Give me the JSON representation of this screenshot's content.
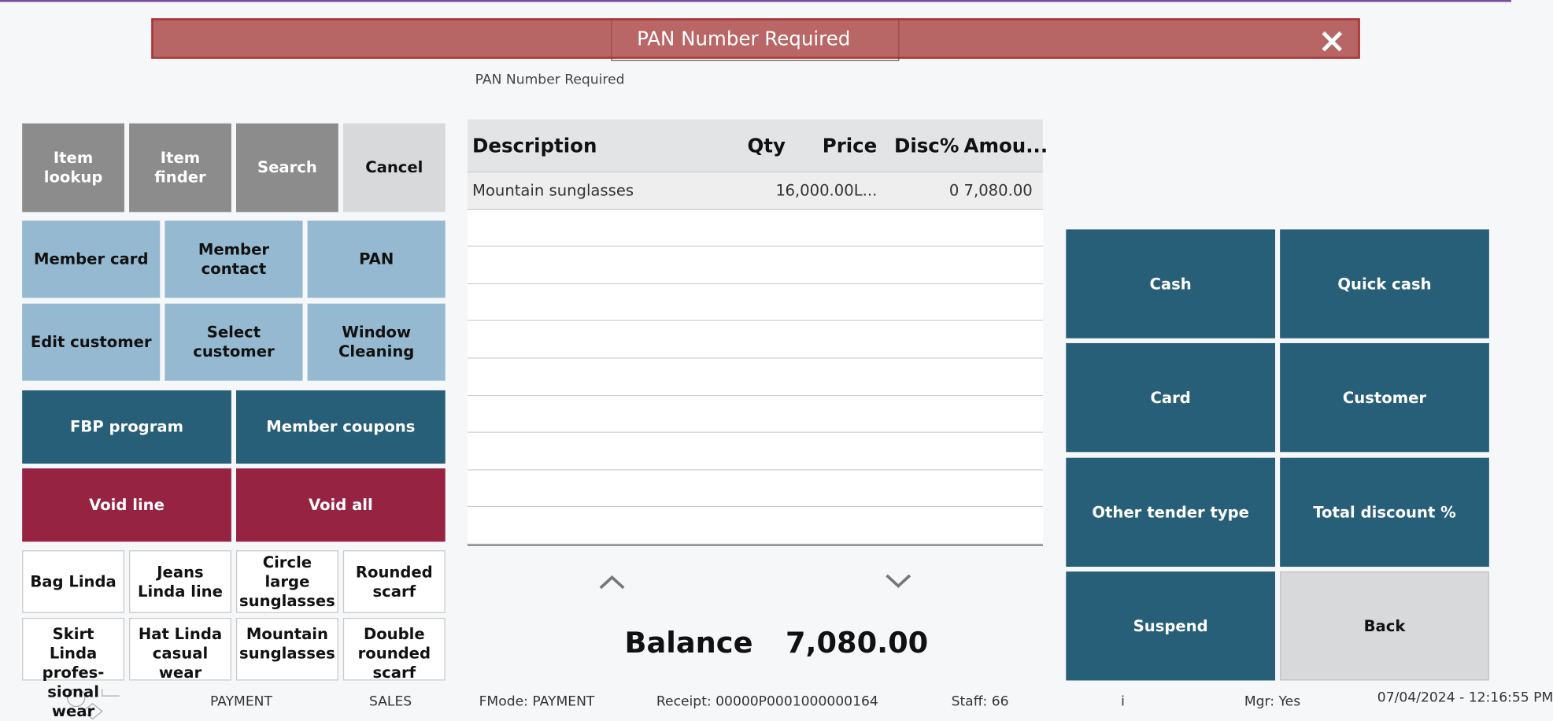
{
  "banner": {
    "message": "PAN Number Required",
    "field_label": "PAN Number Required"
  },
  "left_buttons": [
    [
      "Item lookup",
      "Item finder",
      "Search",
      "Cancel"
    ],
    [
      "Member card",
      "Member contact",
      "PAN"
    ],
    [
      "Edit customer",
      "Select customer",
      "Window Cleaning"
    ],
    [
      "FBP program",
      "Member coupons"
    ],
    [
      "Void line",
      "Void all"
    ],
    [
      "Bag Linda",
      "Jeans Linda line",
      "Circle large sunglasses",
      "Rounded scarf"
    ],
    [
      "Skirt Linda profes-sional wear",
      "Hat Linda casual wear",
      "Mountain sunglasses",
      "Double rounded scarf"
    ]
  ],
  "table": {
    "columns": [
      "Description",
      "Qty",
      "Price",
      "Disc%",
      "Amou..."
    ],
    "rows": [
      [
        "Mountain sunglasses",
        "1",
        "6,000.00L...",
        "0",
        "7,080.00"
      ]
    ]
  },
  "balance": {
    "label": "Balance",
    "amount": "7,080.00"
  },
  "right_buttons": [
    [
      "Cash",
      "Quick cash"
    ],
    [
      "Card",
      "Customer"
    ],
    [
      "Other tender type",
      "Total discount %"
    ],
    [
      "Suspend",
      "Back"
    ]
  ],
  "footer": [
    "PAYMENT",
    "SALES",
    "FMode: PAYMENT",
    "Receipt: 00000P0001000000164",
    "Staff: 66",
    "i",
    "Mgr: Yes",
    "07/04/2024 - 12:16:55 PM"
  ]
}
